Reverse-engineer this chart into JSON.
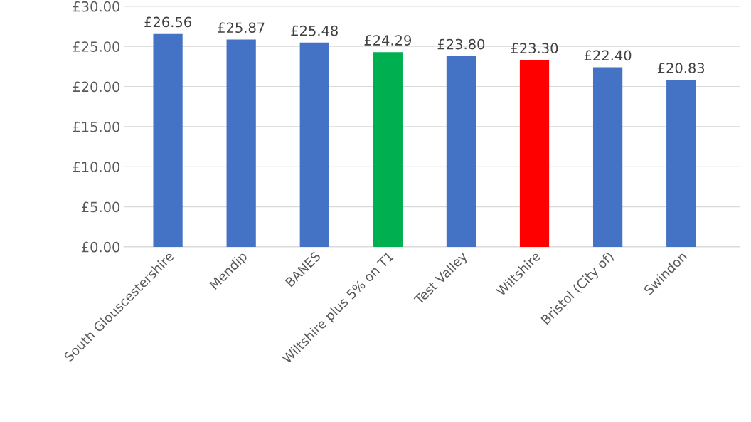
{
  "chart_data": {
    "type": "bar",
    "categories": [
      "South Glouscestershire",
      "Mendip",
      "BANES",
      "Wiltshire plus 5% on T1",
      "Test Valley",
      "Wiltshire",
      "Bristol (City of)",
      "Swindon"
    ],
    "values": [
      26.56,
      25.87,
      25.48,
      24.29,
      23.8,
      23.3,
      22.4,
      20.83
    ],
    "colors": [
      "#4472c4",
      "#4472c4",
      "#4472c4",
      "#00b050",
      "#4472c4",
      "#ff0000",
      "#4472c4",
      "#4472c4"
    ],
    "value_labels": [
      "£26.56",
      "£25.87",
      "£25.48",
      "£24.29",
      "£23.80",
      "£23.30",
      "£22.40",
      "£20.83"
    ],
    "ylim": [
      0,
      30
    ],
    "yticks": [
      {
        "value": 0,
        "label": "£0.00"
      },
      {
        "value": 5,
        "label": "£5.00"
      },
      {
        "value": 10,
        "label": "£10.00"
      },
      {
        "value": 15,
        "label": "£15.00"
      },
      {
        "value": 20,
        "label": "£20.00"
      },
      {
        "value": 25,
        "label": "£25.00"
      },
      {
        "value": 30,
        "label": "£30.00"
      }
    ],
    "grid": "y",
    "legend": false
  }
}
